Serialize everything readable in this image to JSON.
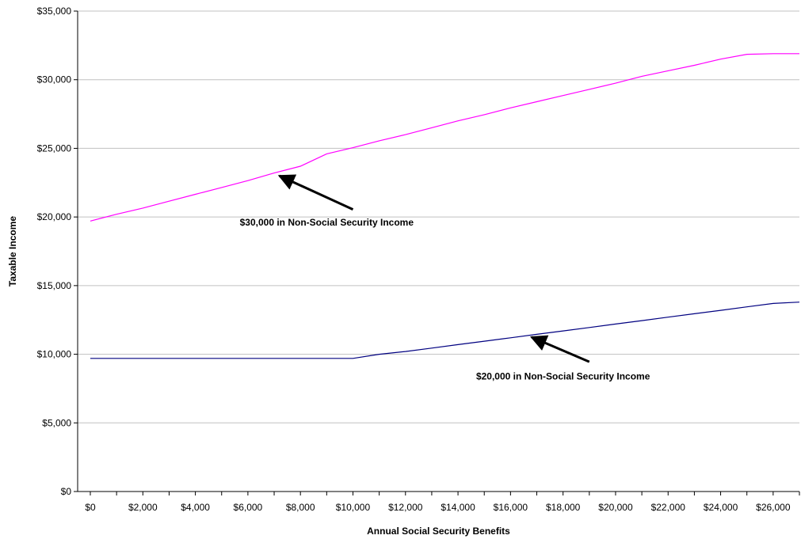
{
  "chart_data": {
    "type": "line",
    "title": "",
    "xlabel": "Annual Social Security Benefits",
    "ylabel": "Taxable Income",
    "xlim": [
      0,
      27000
    ],
    "ylim": [
      0,
      35000
    ],
    "x_ticks": [
      0,
      1000,
      2000,
      3000,
      4000,
      5000,
      6000,
      7000,
      8000,
      9000,
      10000,
      11000,
      12000,
      13000,
      14000,
      15000,
      16000,
      17000,
      18000,
      19000,
      20000,
      21000,
      22000,
      23000,
      24000,
      25000,
      26000,
      27000
    ],
    "x_tick_labels": [
      "$0",
      "$2,000",
      "$4,000",
      "$6,000",
      "$8,000",
      "$10,000",
      "$12,000",
      "$14,000",
      "$16,000",
      "$18,000",
      "$20,000",
      "$22,000",
      "$24,000",
      "$26,000"
    ],
    "x_tick_label_values": [
      0,
      2000,
      4000,
      6000,
      8000,
      10000,
      12000,
      14000,
      16000,
      18000,
      20000,
      22000,
      24000,
      26000
    ],
    "y_tick_values": [
      0,
      5000,
      10000,
      15000,
      20000,
      25000,
      30000,
      35000
    ],
    "y_tick_labels": [
      "$0",
      "$5,000",
      "$10,000",
      "$15,000",
      "$20,000",
      "$25,000",
      "$30,000",
      "$35,000"
    ],
    "grid": "horizontal",
    "series": [
      {
        "color": "#ff00ff",
        "x": [
          0,
          1000,
          2000,
          3000,
          4000,
          5000,
          6000,
          7000,
          8000,
          9000,
          10000,
          11000,
          12000,
          13000,
          14000,
          15000,
          16000,
          17000,
          18000,
          19000,
          20000,
          21000,
          22000,
          23000,
          24000,
          25000,
          26000,
          27000
        ],
        "values": [
          19700,
          20200,
          20650,
          21150,
          21650,
          22150,
          22650,
          23200,
          23700,
          24600,
          25050,
          25550,
          26000,
          26500,
          27000,
          27450,
          27950,
          28400,
          28850,
          29300,
          29750,
          30250,
          30650,
          31050,
          31500,
          31850,
          31900,
          31900
        ]
      },
      {
        "color": "#000080",
        "x": [
          0,
          1000,
          2000,
          3000,
          4000,
          5000,
          6000,
          7000,
          8000,
          9000,
          10000,
          11000,
          12000,
          13000,
          14000,
          15000,
          16000,
          17000,
          18000,
          19000,
          20000,
          21000,
          22000,
          23000,
          24000,
          25000,
          26000,
          27000
        ],
        "values": [
          9700,
          9700,
          9700,
          9700,
          9700,
          9700,
          9700,
          9700,
          9700,
          9700,
          9700,
          10000,
          10200,
          10450,
          10700,
          10950,
          11200,
          11450,
          11700,
          11950,
          12200,
          12450,
          12700,
          12950,
          13200,
          13450,
          13700,
          13800
        ]
      }
    ],
    "annotations": [
      {
        "text": "$30,000 in Non-Social Security Income",
        "arrow_target": [
          7200,
          23000
        ],
        "arrow_tail": [
          10000,
          20550
        ],
        "label_at": [
          9000,
          19600
        ]
      },
      {
        "text": "$20,000 in Non-Social Security Income",
        "arrow_target": [
          16800,
          11250
        ],
        "arrow_tail": [
          19000,
          9450
        ],
        "label_at": [
          18000,
          8400
        ]
      }
    ]
  }
}
